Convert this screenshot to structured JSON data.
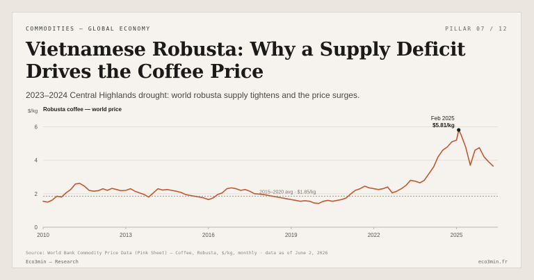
{
  "header": {
    "kicker": "COMMODITIES — GLOBAL ECONOMY",
    "pillar": "PILLAR 07 / 12",
    "title": "Vietnamese Robusta: Why a Supply Deficit Drives the Coffee Price",
    "subtitle": "2023–2024 Central Highlands drought: world robusta supply tightens and the price surges."
  },
  "footer": {
    "source": "Source: World Bank Commodity Price Data (Pink Sheet) — Coffee, Robusta, $/kg, monthly · data as of June 2, 2026",
    "brand": "Eco3min — Research",
    "site": "eco3min.fr"
  },
  "colors": {
    "line": "#c0582f",
    "grid": "#e4dfd7",
    "axis": "#b9b3aa",
    "text": "#1c1a18",
    "avg": "#9a948b"
  },
  "chart_data": {
    "type": "line",
    "title": "",
    "series_label": "Robusta coffee — world price",
    "ylabel": "$/kg",
    "xlabel": "",
    "ylim": [
      0,
      6.6
    ],
    "xlim": [
      2010.0,
      2026.5
    ],
    "yticks": [
      0,
      2,
      4,
      6
    ],
    "xticks": [
      2010,
      2013,
      2016,
      2019,
      2022,
      2025
    ],
    "grid": true,
    "legend": "top-left",
    "reference_line": {
      "value": 1.85,
      "label": "2015–2020 avg · $1.85/kg"
    },
    "annotation": {
      "x": 2025.08,
      "y": 5.81,
      "line1": "Feb 2025",
      "line2": "$5.81/kg"
    },
    "series": [
      {
        "name": "Robusta coffee — world price",
        "x": [
          2010.0,
          2010.17,
          2010.33,
          2010.5,
          2010.67,
          2010.83,
          2011.0,
          2011.17,
          2011.33,
          2011.5,
          2011.67,
          2011.83,
          2012.0,
          2012.17,
          2012.33,
          2012.5,
          2012.67,
          2012.83,
          2013.0,
          2013.17,
          2013.33,
          2013.5,
          2013.67,
          2013.83,
          2014.0,
          2014.17,
          2014.33,
          2014.5,
          2014.67,
          2014.83,
          2015.0,
          2015.17,
          2015.33,
          2015.5,
          2015.67,
          2015.83,
          2016.0,
          2016.17,
          2016.33,
          2016.5,
          2016.67,
          2016.83,
          2017.0,
          2017.17,
          2017.33,
          2017.5,
          2017.67,
          2017.83,
          2018.0,
          2018.17,
          2018.33,
          2018.5,
          2018.67,
          2018.83,
          2019.0,
          2019.17,
          2019.33,
          2019.5,
          2019.67,
          2019.83,
          2020.0,
          2020.17,
          2020.33,
          2020.5,
          2020.67,
          2020.83,
          2021.0,
          2021.17,
          2021.33,
          2021.5,
          2021.67,
          2021.83,
          2022.0,
          2022.17,
          2022.33,
          2022.5,
          2022.67,
          2022.83,
          2023.0,
          2023.17,
          2023.33,
          2023.5,
          2023.67,
          2023.83,
          2024.0,
          2024.17,
          2024.33,
          2024.5,
          2024.67,
          2024.83,
          2025.0,
          2025.08,
          2025.17,
          2025.33,
          2025.5,
          2025.67,
          2025.83,
          2026.0,
          2026.17,
          2026.33
        ],
        "values": [
          1.55,
          1.5,
          1.62,
          1.85,
          1.8,
          2.05,
          2.25,
          2.58,
          2.62,
          2.45,
          2.2,
          2.15,
          2.18,
          2.3,
          2.2,
          2.32,
          2.25,
          2.18,
          2.2,
          2.3,
          2.15,
          2.05,
          1.95,
          1.8,
          2.05,
          2.3,
          2.22,
          2.25,
          2.2,
          2.15,
          2.08,
          1.95,
          1.9,
          1.85,
          1.8,
          1.75,
          1.65,
          1.75,
          1.95,
          2.05,
          2.3,
          2.35,
          2.3,
          2.2,
          2.25,
          2.15,
          2.0,
          1.98,
          1.95,
          1.9,
          1.85,
          1.8,
          1.75,
          1.7,
          1.65,
          1.6,
          1.55,
          1.58,
          1.55,
          1.45,
          1.42,
          1.55,
          1.6,
          1.55,
          1.6,
          1.65,
          1.75,
          2.0,
          2.2,
          2.3,
          2.45,
          2.35,
          2.3,
          2.25,
          2.3,
          2.4,
          2.05,
          2.15,
          2.3,
          2.5,
          2.8,
          2.75,
          2.65,
          2.8,
          3.2,
          3.6,
          4.2,
          4.6,
          4.8,
          5.1,
          5.2,
          5.81,
          5.5,
          4.8,
          3.7,
          4.6,
          4.75,
          4.2,
          3.9,
          3.65
        ]
      }
    ]
  }
}
